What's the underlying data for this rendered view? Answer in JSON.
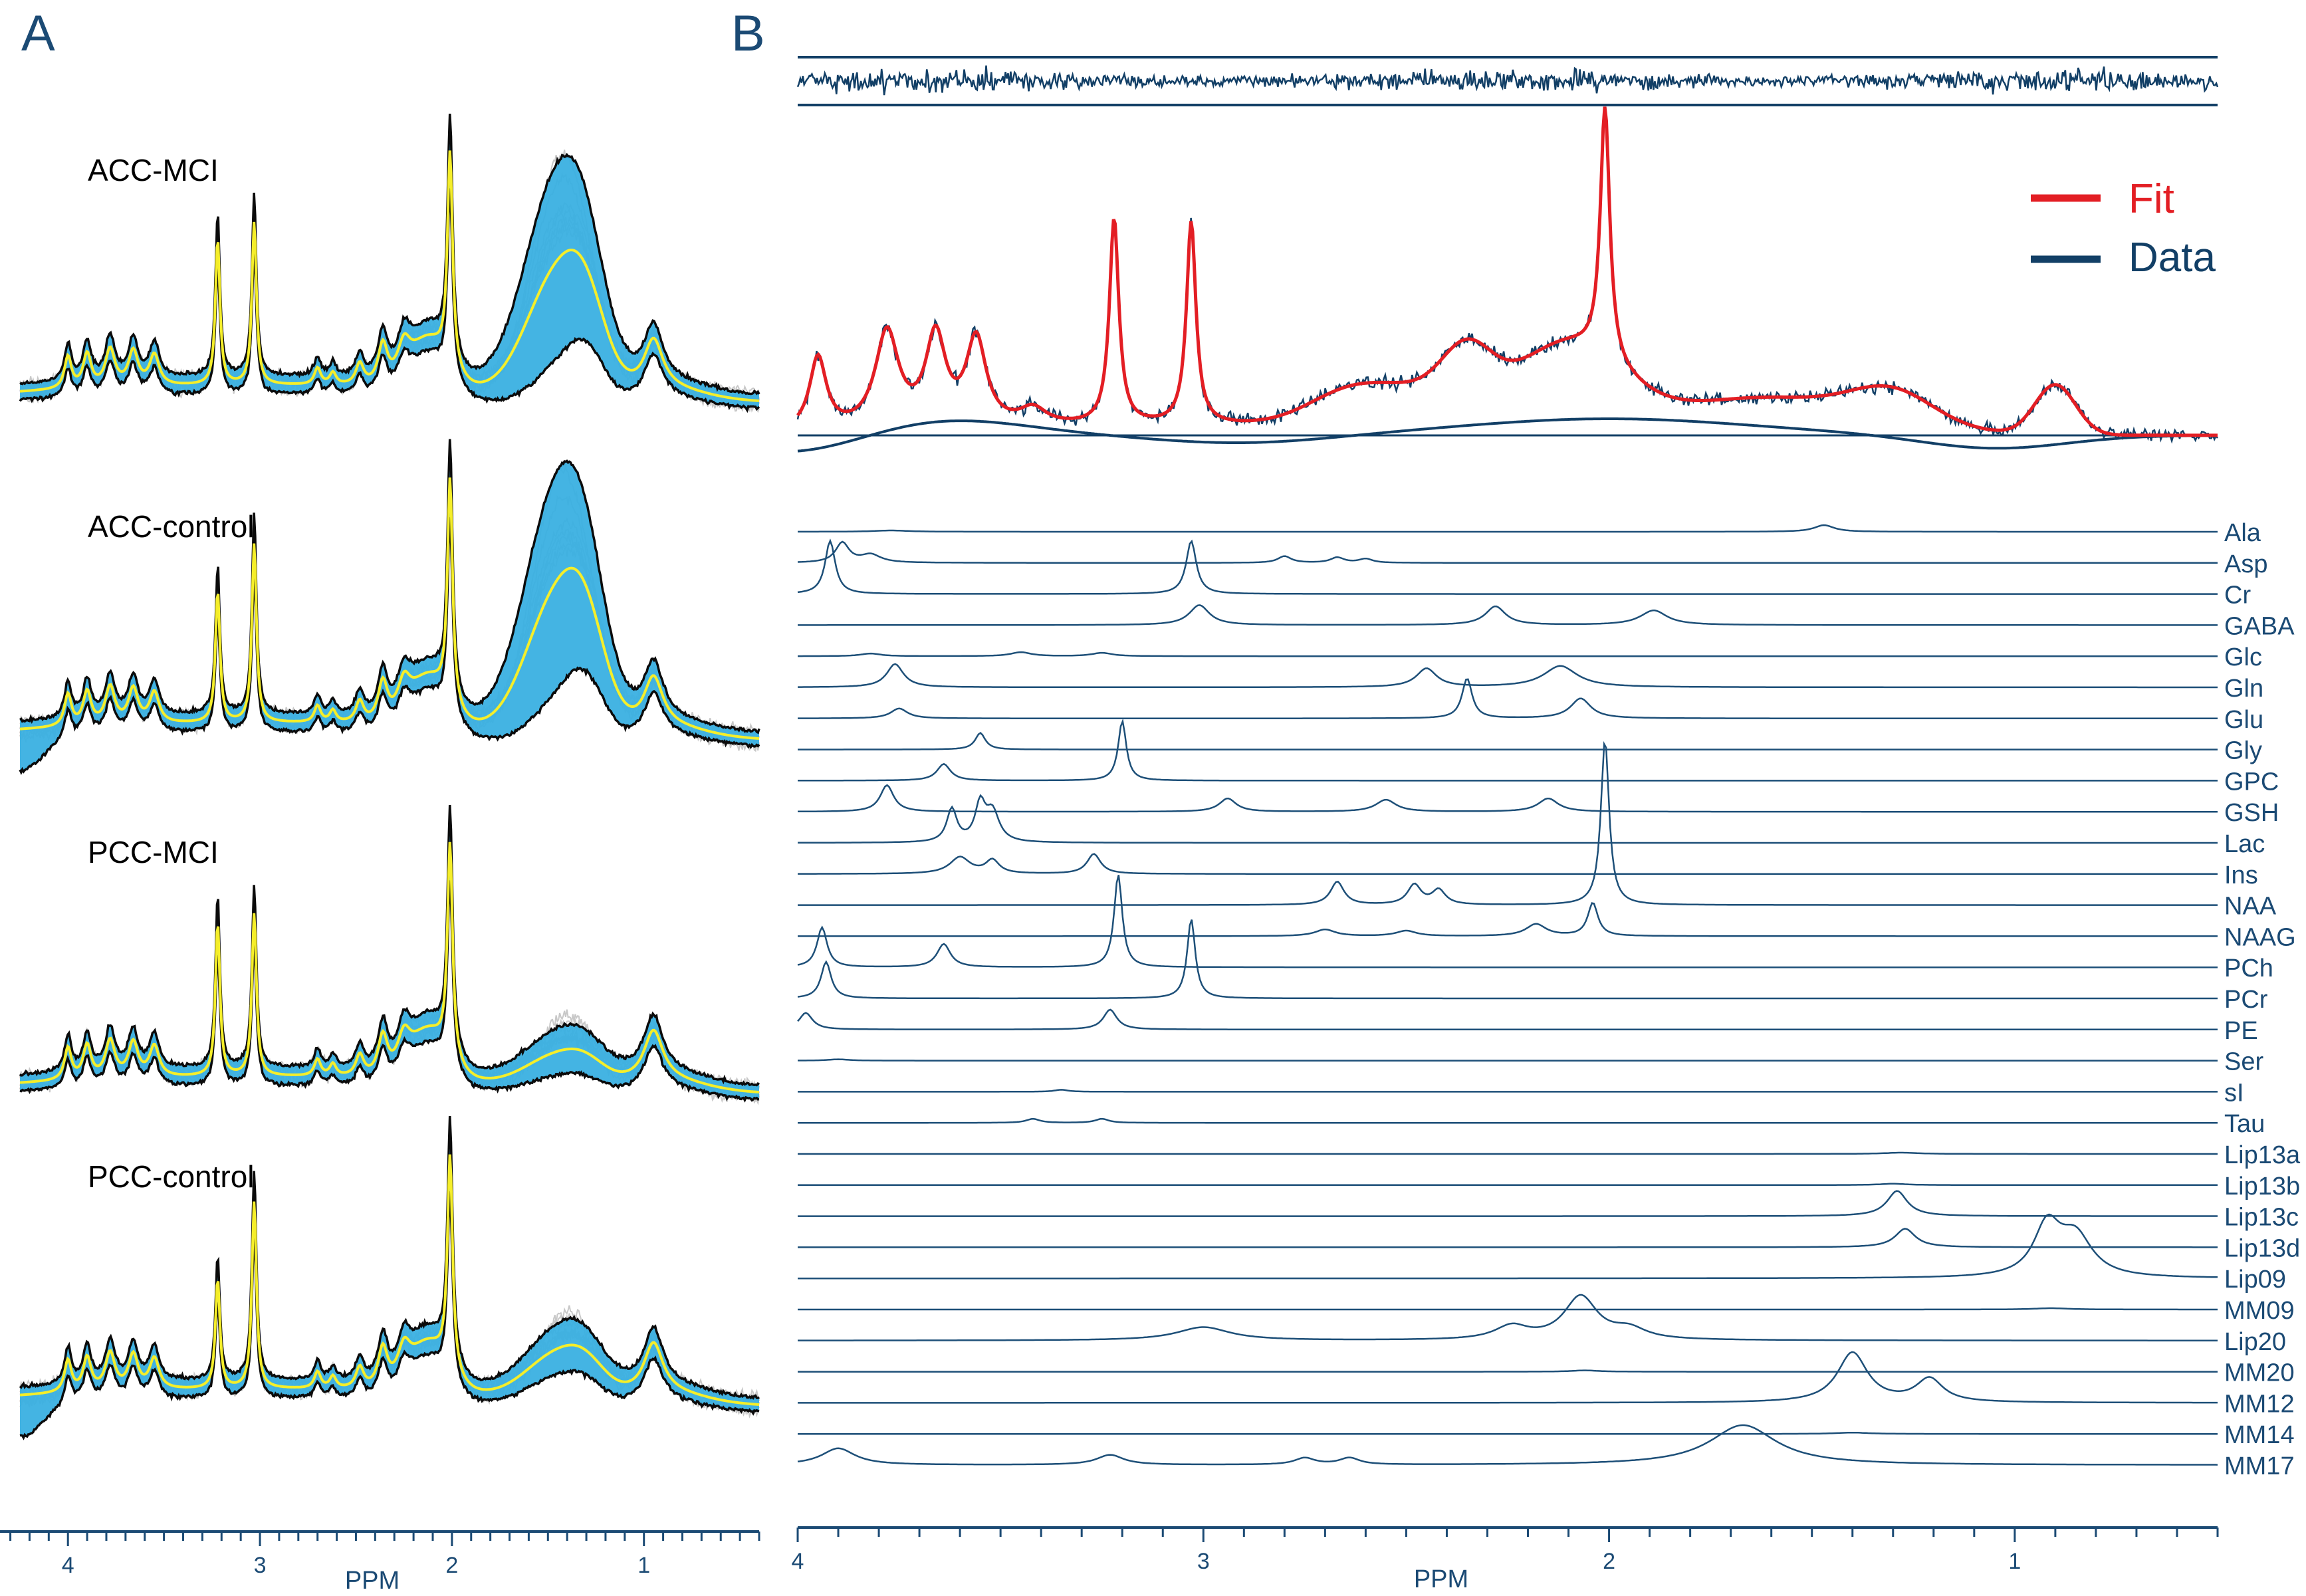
{
  "panels": {
    "A": {
      "letter": "A",
      "groups": [
        "ACC-MCI",
        "ACC-control",
        "PCC-MCI",
        "PCC-control"
      ],
      "xlabel": "PPM",
      "ticks": [
        4,
        3,
        2,
        1
      ],
      "colors": {
        "mean": "#f5ee2a",
        "band": "#3ab0e2",
        "outline": "#0b0b0b",
        "individual": "#c8c8c8"
      }
    },
    "B": {
      "letter": "B",
      "xlabel": "PPM",
      "ticks": [
        4,
        3,
        2,
        1
      ],
      "legend": [
        {
          "label": "Fit",
          "color": "#e31e24"
        },
        {
          "label": "Data",
          "color": "#123f66"
        }
      ],
      "metabolites": [
        "Ala",
        "Asp",
        "Cr",
        "GABA",
        "Glc",
        "Gln",
        "Glu",
        "Gly",
        "GPC",
        "GSH",
        "Lac",
        "Ins",
        "NAA",
        "NAAG",
        "PCh",
        "PCr",
        "PE",
        "Ser",
        "sI",
        "Tau",
        "Lip13a",
        "Lip13b",
        "Lip13c",
        "Lip13d",
        "Lip09",
        "MM09",
        "Lip20",
        "MM20",
        "MM12",
        "MM14",
        "MM17"
      ]
    }
  },
  "chart_data": [
    {
      "type": "line",
      "panel": "A",
      "xlabel": "PPM",
      "xlim": [
        4.25,
        0.4
      ],
      "x_reversed": true,
      "series": [
        {
          "name": "ACC-MCI",
          "peaks_ppm": [
            4.0,
            3.9,
            3.78,
            3.65,
            3.55,
            3.22,
            3.03,
            2.5,
            2.3,
            2.01,
            1.4,
            0.95
          ]
        },
        {
          "name": "ACC-control",
          "peaks_ppm": [
            4.0,
            3.9,
            3.78,
            3.65,
            3.55,
            3.22,
            3.03,
            2.5,
            2.3,
            2.01,
            1.4,
            0.95
          ]
        },
        {
          "name": "PCC-MCI",
          "peaks_ppm": [
            4.0,
            3.9,
            3.78,
            3.65,
            3.55,
            3.22,
            3.03,
            2.5,
            2.3,
            2.01,
            1.4,
            0.95
          ]
        },
        {
          "name": "PCC-control",
          "peaks_ppm": [
            4.0,
            3.9,
            3.78,
            3.65,
            3.55,
            3.22,
            3.03,
            2.5,
            2.3,
            2.01,
            1.4,
            0.95
          ]
        }
      ]
    },
    {
      "type": "line",
      "panel": "B",
      "xlabel": "PPM",
      "xlim": [
        4.0,
        0.5
      ],
      "x_reversed": true,
      "series": [
        {
          "name": "Fit"
        },
        {
          "name": "Data"
        }
      ],
      "basis_set": [
        "Ala",
        "Asp",
        "Cr",
        "GABA",
        "Glc",
        "Gln",
        "Glu",
        "Gly",
        "GPC",
        "GSH",
        "Lac",
        "Ins",
        "NAA",
        "NAAG",
        "PCh",
        "PCr",
        "PE",
        "Ser",
        "sI",
        "Tau",
        "Lip13a",
        "Lip13b",
        "Lip13c",
        "Lip13d",
        "Lip09",
        "MM09",
        "Lip20",
        "MM20",
        "MM12",
        "MM14",
        "MM17"
      ]
    }
  ]
}
